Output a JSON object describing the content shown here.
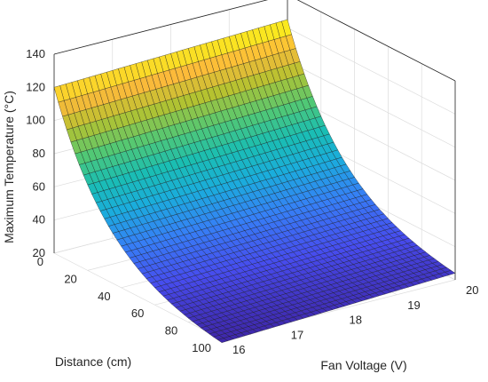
{
  "chart_data": {
    "type": "surface",
    "title": "",
    "xlabel": "Fan Voltage (V)",
    "ylabel": "Distance (cm)",
    "zlabel": "Maximum Temperature (°C)",
    "x_ticks": [
      16,
      17,
      18,
      19,
      20
    ],
    "y_ticks": [
      0,
      20,
      40,
      60,
      80,
      100
    ],
    "z_ticks": [
      20,
      40,
      60,
      80,
      100,
      120,
      140
    ],
    "x_range": [
      16,
      20
    ],
    "y_range": [
      0,
      100
    ],
    "z_range": [
      20,
      140
    ],
    "grid": true,
    "colormap": "parula",
    "surface": {
      "x_values": [
        16,
        20
      ],
      "y_values": [
        0,
        100
      ],
      "z_corners": {
        "x16_y0": 120,
        "x20_y0": 125,
        "x16_y100": 18,
        "x20_y100": 24
      },
      "decay_description": "temperature decreases exponentially with distance, roughly flat with fan voltage"
    }
  },
  "colors": {
    "axis": "#262626",
    "grid": "#dcdcdc",
    "mesh": "#1a1a1a"
  }
}
